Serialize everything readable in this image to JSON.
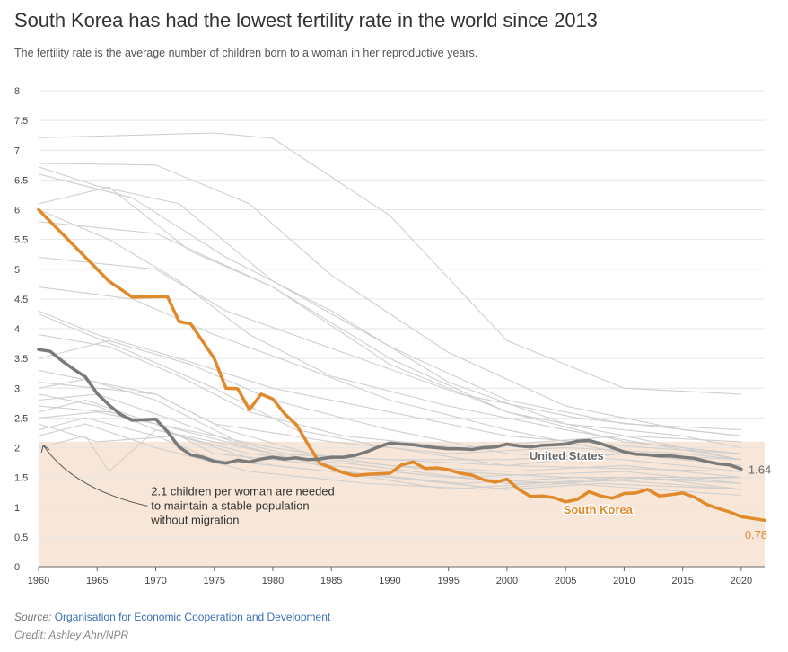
{
  "title": "South Korea has had the lowest fertility rate in the world since 2013",
  "subtitle": "The fertility rate is the average number of children born to a woman in her reproductive years.",
  "source_label": "Source:",
  "source_link": "Organisation for Economic Cooperation and Development",
  "credit": "Credit: Ashley Ahn/NPR",
  "annotation": [
    "2.1 children per woman are needed",
    "to maintain a stable population",
    "without migration"
  ],
  "colors": {
    "korea": "#e08a2b",
    "us": "#7a7a7a",
    "others": "#cfcfcf",
    "band": "#f8e7d8"
  },
  "chart_data": {
    "type": "line",
    "xlim": [
      1960,
      2022
    ],
    "ylim": [
      0,
      8
    ],
    "x_ticks": [
      1960,
      1965,
      1970,
      1975,
      1980,
      1985,
      1990,
      1995,
      2000,
      2005,
      2010,
      2015,
      2020
    ],
    "y_ticks": [
      "0",
      "0.5",
      "1",
      "1.5",
      "2",
      "2.5",
      "3",
      "3.5",
      "4",
      "4.5",
      "5",
      "5.5",
      "6",
      "6.5",
      "7",
      "7.5",
      "8"
    ],
    "grid": true,
    "replacement_band": [
      0,
      2.1
    ],
    "highlight_series": [
      {
        "name": "South Korea",
        "end_label": "0.78",
        "x": [
          1960,
          1962,
          1964,
          1966,
          1968,
          1971,
          1972,
          1973,
          1975,
          1976,
          1977,
          1978,
          1979,
          1980,
          1981,
          1982,
          1983,
          1984,
          1985,
          1986,
          1987,
          1988,
          1989,
          1990,
          1991,
          1992,
          1993,
          1994,
          1995,
          1996,
          1997,
          1998,
          1999,
          2000,
          2001,
          2002,
          2003,
          2004,
          2005,
          2006,
          2007,
          2008,
          2009,
          2010,
          2011,
          2012,
          2013,
          2014,
          2015,
          2016,
          2017,
          2018,
          2019,
          2020,
          2021,
          2022
        ],
        "y": [
          6.0,
          5.6,
          5.2,
          4.8,
          4.53,
          4.54,
          4.12,
          4.08,
          3.5,
          3.0,
          2.99,
          2.64,
          2.9,
          2.82,
          2.57,
          2.39,
          2.06,
          1.74,
          1.66,
          1.58,
          1.53,
          1.55,
          1.56,
          1.57,
          1.71,
          1.76,
          1.65,
          1.66,
          1.63,
          1.57,
          1.54,
          1.46,
          1.42,
          1.47,
          1.3,
          1.18,
          1.19,
          1.16,
          1.09,
          1.13,
          1.26,
          1.19,
          1.15,
          1.23,
          1.24,
          1.3,
          1.19,
          1.21,
          1.24,
          1.17,
          1.05,
          0.98,
          0.92,
          0.84,
          0.81,
          0.78
        ]
      },
      {
        "name": "United States",
        "end_label": "1.64",
        "x": [
          1960,
          1961,
          1962,
          1963,
          1964,
          1965,
          1966,
          1967,
          1968,
          1970,
          1971,
          1972,
          1973,
          1974,
          1975,
          1976,
          1977,
          1978,
          1979,
          1980,
          1981,
          1982,
          1983,
          1984,
          1985,
          1986,
          1987,
          1988,
          1989,
          1990,
          1991,
          1992,
          1993,
          1994,
          1995,
          1996,
          1997,
          1998,
          1999,
          2000,
          2001,
          2002,
          2003,
          2004,
          2005,
          2006,
          2007,
          2008,
          2009,
          2010,
          2011,
          2012,
          2013,
          2014,
          2015,
          2016,
          2017,
          2018,
          2019,
          2020
        ],
        "y": [
          3.65,
          3.62,
          3.46,
          3.32,
          3.19,
          2.91,
          2.72,
          2.56,
          2.46,
          2.48,
          2.27,
          2.01,
          1.88,
          1.84,
          1.77,
          1.74,
          1.79,
          1.76,
          1.81,
          1.84,
          1.81,
          1.83,
          1.8,
          1.81,
          1.84,
          1.84,
          1.87,
          1.93,
          2.01,
          2.08,
          2.06,
          2.05,
          2.02,
          2.0,
          1.98,
          1.98,
          1.97,
          2.0,
          2.01,
          2.06,
          2.03,
          2.01,
          2.04,
          2.05,
          2.06,
          2.11,
          2.12,
          2.07,
          2.0,
          1.93,
          1.89,
          1.88,
          1.86,
          1.86,
          1.84,
          1.82,
          1.77,
          1.73,
          1.71,
          1.64
        ]
      }
    ],
    "background_series": [
      {
        "x": [
          1960,
          1975,
          1980,
          1990,
          2000,
          2010,
          2020
        ],
        "y": [
          7.21,
          7.29,
          7.2,
          5.9,
          3.8,
          3.0,
          2.9
        ]
      },
      {
        "x": [
          1960,
          1970,
          1978,
          1985,
          1995,
          2005,
          2015,
          2020
        ],
        "y": [
          6.78,
          6.75,
          6.1,
          4.9,
          3.6,
          2.7,
          2.3,
          2.2
        ]
      },
      {
        "x": [
          1960,
          1965,
          1972,
          1980,
          1990,
          2000,
          2010,
          2020
        ],
        "y": [
          6.72,
          6.4,
          6.1,
          4.8,
          3.7,
          2.8,
          2.4,
          2.3
        ]
      },
      {
        "x": [
          1960,
          1966,
          1973,
          1980,
          1990,
          2000,
          2010,
          2020
        ],
        "y": [
          6.1,
          6.38,
          5.3,
          4.7,
          3.5,
          2.6,
          2.2,
          2.1
        ]
      },
      {
        "x": [
          1960,
          1968,
          1976,
          1985,
          1995,
          2005,
          2015,
          2020
        ],
        "y": [
          6.6,
          6.2,
          5.2,
          4.3,
          3.1,
          2.4,
          2.2,
          2.0
        ]
      },
      {
        "x": [
          1960,
          1970,
          1980,
          1990,
          2000,
          2010,
          2020
        ],
        "y": [
          5.8,
          5.6,
          4.7,
          3.4,
          2.6,
          2.1,
          1.9
        ]
      },
      {
        "x": [
          1960,
          1966,
          1972,
          1978,
          1985,
          1995,
          2005,
          2020
        ],
        "y": [
          6.0,
          5.5,
          4.8,
          3.9,
          3.2,
          2.7,
          2.3,
          1.8
        ]
      },
      {
        "x": [
          1960,
          1970,
          1976,
          1986,
          1996,
          2006,
          2020
        ],
        "y": [
          5.2,
          5.0,
          4.3,
          3.6,
          2.9,
          2.5,
          2.2
        ]
      },
      {
        "x": [
          1960,
          1968,
          1975,
          1982,
          1990,
          2000,
          2010,
          2020
        ],
        "y": [
          4.7,
          4.5,
          3.9,
          3.4,
          2.8,
          2.3,
          1.9,
          1.7
        ]
      },
      {
        "x": [
          1960,
          1963,
          1968,
          1975,
          1982,
          1990,
          2000,
          2020
        ],
        "y": [
          4.25,
          4.0,
          3.6,
          3.0,
          2.3,
          2.0,
          1.7,
          1.6
        ]
      },
      {
        "x": [
          1960,
          1965,
          1972,
          1980,
          1990,
          2000,
          2012,
          2020
        ],
        "y": [
          4.3,
          3.9,
          3.5,
          3.0,
          2.6,
          2.2,
          2.0,
          1.9
        ]
      },
      {
        "x": [
          1960,
          1966,
          1973,
          1980,
          1990,
          2000,
          2010,
          2020
        ],
        "y": [
          3.5,
          3.8,
          3.4,
          2.8,
          2.3,
          1.9,
          1.8,
          1.6
        ]
      },
      {
        "x": [
          1960,
          1965,
          1970,
          1976,
          1985,
          1995,
          2005,
          2020
        ],
        "y": [
          3.1,
          3.0,
          2.9,
          2.3,
          1.8,
          1.6,
          1.5,
          1.5
        ]
      },
      {
        "x": [
          1960,
          1964,
          1970,
          1977,
          1985,
          1995,
          2010,
          2020
        ],
        "y": [
          3.0,
          3.15,
          2.8,
          2.1,
          1.7,
          1.5,
          1.6,
          1.4
        ]
      },
      {
        "x": [
          1960,
          1965,
          1971,
          1978,
          1986,
          1996,
          2006,
          2020
        ],
        "y": [
          2.8,
          2.9,
          2.5,
          2.0,
          1.6,
          1.4,
          1.5,
          1.3
        ]
      },
      {
        "x": [
          1960,
          1964,
          1970,
          1975,
          1985,
          1995,
          2005,
          2020
        ],
        "y": [
          2.6,
          2.8,
          2.4,
          1.9,
          1.7,
          1.5,
          1.4,
          1.2
        ]
      },
      {
        "x": [
          1960,
          1966,
          1972,
          1980,
          1990,
          2000,
          2010,
          2020
        ],
        "y": [
          2.7,
          2.6,
          2.3,
          1.9,
          1.8,
          1.7,
          1.9,
          1.7
        ]
      },
      {
        "x": [
          1960,
          1965,
          1970,
          1980,
          1990,
          2000,
          2010,
          2020
        ],
        "y": [
          2.5,
          2.6,
          2.4,
          2.0,
          1.7,
          1.6,
          1.7,
          1.5
        ]
      },
      {
        "x": [
          1960,
          1964,
          1970,
          1975,
          1985,
          1995,
          2010,
          2020
        ],
        "y": [
          2.3,
          2.5,
          2.2,
          1.8,
          1.6,
          1.3,
          1.5,
          1.4
        ]
      },
      {
        "x": [
          1960,
          1965,
          1972,
          1980,
          1990,
          2000,
          2008,
          2020
        ],
        "y": [
          2.4,
          2.1,
          2.2,
          1.7,
          1.5,
          1.3,
          1.4,
          1.3
        ]
      },
      {
        "x": [
          1960,
          1964,
          1970,
          1978,
          1988,
          1998,
          2012,
          2020
        ],
        "y": [
          2.2,
          2.4,
          2.0,
          1.6,
          1.4,
          1.3,
          1.5,
          1.3
        ]
      },
      {
        "x": [
          1960,
          1964,
          1966,
          1970,
          1978,
          1988,
          2000,
          2020
        ],
        "y": [
          2.0,
          2.2,
          1.6,
          2.3,
          1.9,
          1.7,
          1.4,
          1.5
        ]
      },
      {
        "x": [
          1960,
          1965,
          1970,
          1980,
          1990,
          2000,
          2010,
          2020
        ],
        "y": [
          2.9,
          2.7,
          2.3,
          1.9,
          1.8,
          1.8,
          1.9,
          1.8
        ]
      },
      {
        "x": [
          1960,
          1965,
          1970,
          1975,
          1985,
          1995,
          2005,
          2015,
          2020
        ],
        "y": [
          3.3,
          3.1,
          2.9,
          2.4,
          2.1,
          1.9,
          2.0,
          1.9,
          1.8
        ]
      },
      {
        "x": [
          1960,
          1966,
          1972,
          1978,
          1986,
          1996,
          2010,
          2020
        ],
        "y": [
          3.9,
          3.7,
          3.2,
          2.6,
          2.2,
          2.0,
          2.2,
          1.8
        ]
      }
    ]
  }
}
